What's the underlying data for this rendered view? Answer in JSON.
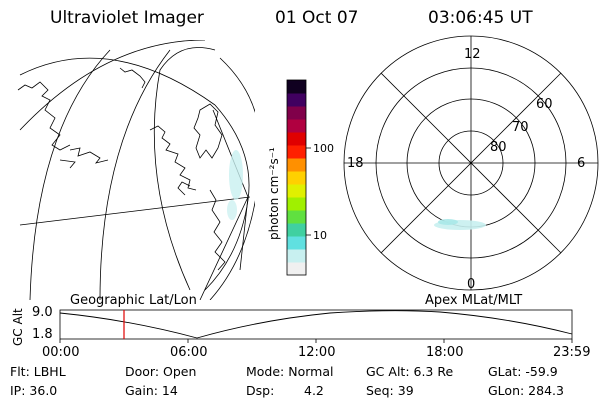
{
  "header": {
    "instrument": "Ultraviolet Imager",
    "date": "01 Oct 07",
    "time": "03:06:45 UT"
  },
  "colorbar": {
    "unit_label": "photon cm⁻²s⁻¹",
    "tick_100": "100",
    "tick_10": "10",
    "colors": [
      "#f0f0f0",
      "#c8f0f0",
      "#60e0e0",
      "#40d0a0",
      "#60e040",
      "#a0f000",
      "#e0f000",
      "#ffd000",
      "#ff9000",
      "#ff2000",
      "#e00000",
      "#b00040",
      "#80004a",
      "#400060",
      "#100020"
    ]
  },
  "polar": {
    "label_top": "12",
    "label_bottom": "0",
    "label_left": "18",
    "label_right": "6",
    "lat_80": "80",
    "lat_70": "70",
    "lat_60": "60"
  },
  "timeline": {
    "left_title": "Geographic Lat/Lon",
    "right_title": "Apex MLat/MLT",
    "axis_label": "GC Alt",
    "y_top": "9.0",
    "y_bottom": "1.8",
    "x_ticks": [
      "00:00",
      "06:00",
      "12:00",
      "18:00",
      "23:59"
    ],
    "marker_color": "#e00000"
  },
  "info": {
    "flt": "Flt: LBHL",
    "door": "Door: Open",
    "mode": "Mode: Normal",
    "gc_alt": "GC Alt: 6.3 Re",
    "glat": "GLat: -59.9",
    "ip": "IP: 36.0",
    "gain": "Gain: 14",
    "dsp_label": "Dsp:",
    "dsp_value": "4.2",
    "seq": "Seq: 39",
    "glon": "GLon: 284.3"
  }
}
